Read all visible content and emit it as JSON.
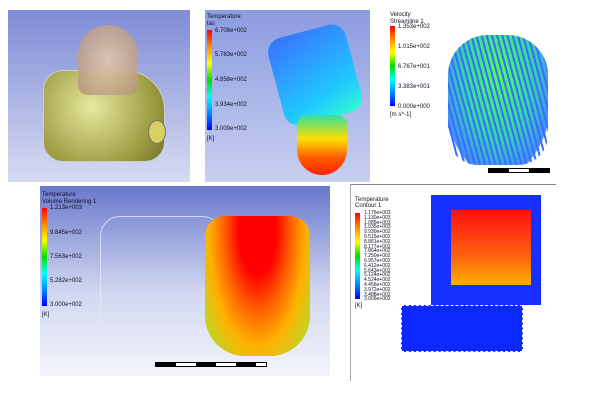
{
  "panels": [
    {
      "title": "",
      "legend": null
    },
    {
      "legend": {
        "variable": "Temperature",
        "sub": "tas",
        "unit": "[K]",
        "ticks": [
          "6.708e+002",
          "5.783e+002",
          "4.858e+002",
          "3.934e+002",
          "3.009e+002"
        ]
      }
    },
    {
      "legend": {
        "variable": "Velocity",
        "sub": "Streamline 1",
        "unit": "[m s^-1]",
        "ticks": [
          "1.353e+002",
          "1.015e+002",
          "6.767e+001",
          "3.383e+001",
          "0.000e+000"
        ]
      }
    },
    {
      "legend": {
        "variable": "Temperature",
        "sub": "Volume Rendering 1",
        "unit": "[K]",
        "ticks": [
          "1.213e+003",
          "9.845e+002",
          "7.563e+002",
          "5.282e+002",
          "3.000e+002"
        ]
      }
    },
    {
      "legend": {
        "variable": "Temperature",
        "sub": "Contour 1",
        "unit": "[K]",
        "ticks": [
          "1.175e+003",
          "1.130e+003",
          "1.085e+003",
          "1.035e+003",
          "9.930e+002",
          "9.515e+002",
          "8.861e+002",
          "8.177e+002",
          "7.864e+002",
          "7.250e+002",
          "6.957e+002",
          "6.412e+002",
          "5.643e+002",
          "5.124e+002",
          "4.524e+002",
          "4.456e+002",
          "3.972e+002",
          "3.488e+002",
          "3.006e+002"
        ]
      }
    }
  ],
  "colors": {
    "hot": "#ff0000",
    "cold": "#0000ff",
    "background": "#8090d8"
  }
}
